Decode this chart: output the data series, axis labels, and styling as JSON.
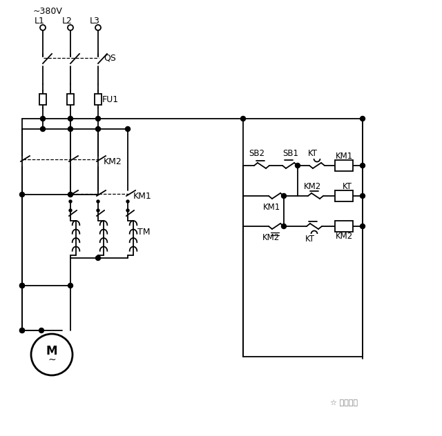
{
  "bg_color": "#ffffff",
  "fig_width": 6.4,
  "fig_height": 6.32,
  "dpi": 100,
  "voltage_label": "~380V",
  "L_labels": [
    "L1",
    "L2",
    "L3"
  ],
  "QS_label": "QS",
  "FU1_label": "FU1",
  "KM1_label": "KM1",
  "KM2_label": "KM2",
  "TM_label": "TM",
  "SB2_label": "SB2",
  "SB1_label": "SB1",
  "KT_label": "KT",
  "M_label": "M",
  "watermark": "技成培训"
}
